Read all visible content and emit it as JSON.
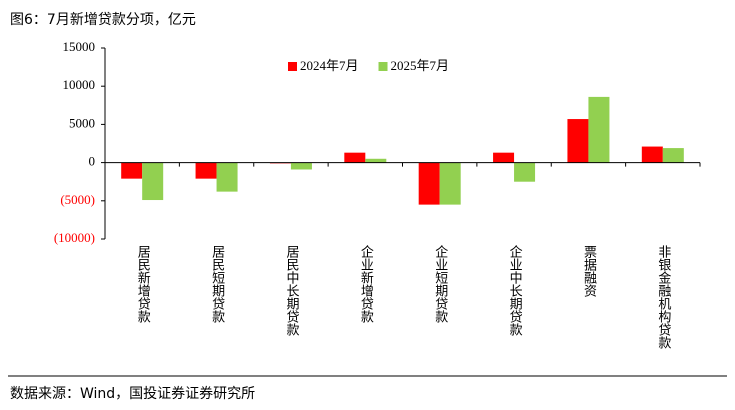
{
  "chart_data": {
    "type": "bar",
    "title": "图6：7月新增贷款分项，亿元",
    "source": "数据来源：Wind，国投证券证券研究所",
    "categories": [
      "居民新增贷款",
      "居民短期贷款",
      "居民中长期贷款",
      "企业新增贷款",
      "企业短期贷款",
      "企业中长期贷款",
      "票据融资",
      "非银金融机构贷款"
    ],
    "series": [
      {
        "name": "2024年7月",
        "color": "#ff0000",
        "values": [
          -2100,
          -2100,
          -100,
          1300,
          -5500,
          1300,
          5700,
          2100
        ]
      },
      {
        "name": "2025年7月",
        "color": "#92d050",
        "values": [
          -4900,
          -3800,
          -900,
          500,
          -5500,
          -2500,
          8600,
          1900
        ]
      }
    ],
    "ylim": [
      -10000,
      15000
    ],
    "yticks": [
      {
        "value": -10000,
        "label": "(10000)"
      },
      {
        "value": -5000,
        "label": "(5000)"
      },
      0,
      5000,
      10000,
      15000
    ],
    "negative_label_color": "#ff0000",
    "legend": "top"
  }
}
